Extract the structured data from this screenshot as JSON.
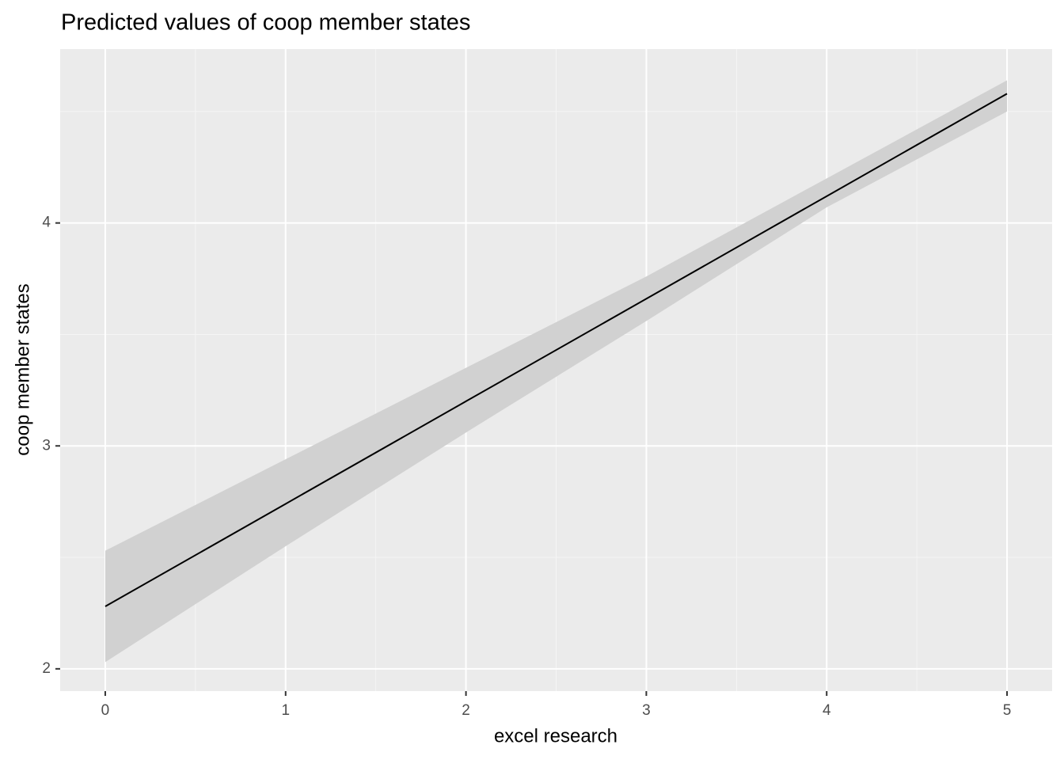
{
  "chart_data": {
    "type": "line",
    "title": "Predicted values of coop member states",
    "x_label": "excel research",
    "y_label": "coop member states",
    "x": [
      0,
      1,
      2,
      3,
      4,
      5
    ],
    "values": [
      2.28,
      2.74,
      3.2,
      3.66,
      4.12,
      4.58
    ],
    "lower": [
      2.03,
      2.55,
      3.06,
      3.56,
      4.07,
      4.5
    ],
    "upper": [
      2.53,
      2.94,
      3.35,
      3.76,
      4.2,
      4.64
    ],
    "color": "#000000",
    "band_color": "#d1d1d1",
    "background": "#ebebeb",
    "xlim": [
      -0.25,
      5.25
    ],
    "xticks": [
      0,
      1,
      2,
      3,
      4,
      5
    ],
    "ylim": [
      1.9,
      4.78
    ],
    "yticks": [
      2,
      3,
      4
    ],
    "grid": true
  }
}
